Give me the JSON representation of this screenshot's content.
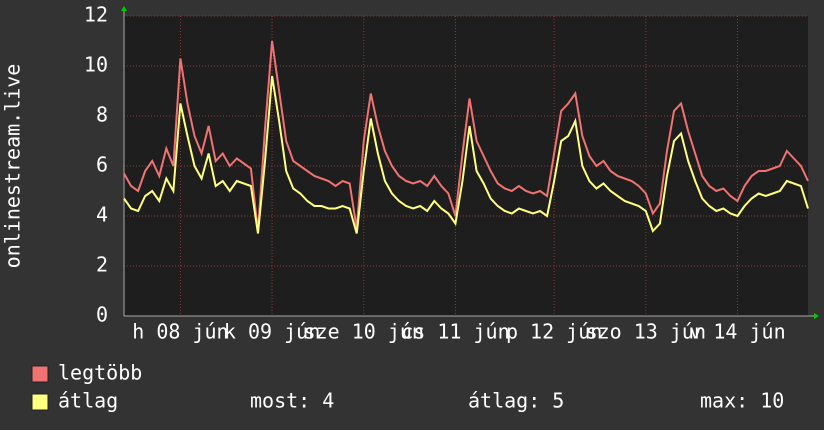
{
  "chart_data": {
    "type": "line",
    "y_label": "onlinestream.live",
    "xlim": [
      0,
      97
    ],
    "xticks": [
      {
        "value": 8,
        "label": "h 08 jún"
      },
      {
        "value": 21,
        "label": "k 09 jún"
      },
      {
        "value": 34,
        "label": "sze 10 jún"
      },
      {
        "value": 47,
        "label": "cs 11 jún"
      },
      {
        "value": 61,
        "label": "p 12 jún"
      },
      {
        "value": 74,
        "label": "szo 13 jún"
      },
      {
        "value": 87,
        "label": "v 14 jún"
      }
    ],
    "ylim": [
      0,
      12
    ],
    "yticks": [
      0,
      2,
      4,
      6,
      8,
      10,
      12
    ],
    "grid": true,
    "series": [
      {
        "name": "legtöbb",
        "color": "#f07272",
        "values": [
          5.7,
          5.2,
          5.0,
          5.8,
          6.2,
          5.6,
          6.7,
          6.0,
          10.3,
          8.5,
          7.2,
          6.5,
          7.6,
          6.2,
          6.5,
          6.0,
          6.3,
          6.1,
          5.9,
          3.4,
          7.5,
          11.0,
          9.0,
          7.0,
          6.2,
          6.0,
          5.8,
          5.6,
          5.5,
          5.4,
          5.2,
          5.4,
          5.3,
          3.5,
          7.0,
          8.9,
          7.6,
          6.6,
          6.0,
          5.6,
          5.4,
          5.3,
          5.4,
          5.2,
          5.6,
          5.2,
          4.9,
          4.0,
          6.5,
          8.7,
          7.0,
          6.4,
          5.8,
          5.3,
          5.1,
          5.0,
          5.2,
          5.0,
          4.9,
          5.0,
          4.8,
          6.5,
          8.2,
          8.5,
          8.9,
          7.2,
          6.4,
          6.0,
          6.2,
          5.8,
          5.6,
          5.5,
          5.4,
          5.2,
          4.9,
          4.1,
          4.5,
          6.6,
          8.2,
          8.5,
          7.4,
          6.5,
          5.6,
          5.2,
          5.0,
          5.1,
          4.8,
          4.6,
          5.2,
          5.6,
          5.8,
          5.8,
          5.9,
          6.0,
          6.6,
          6.3,
          6.0,
          5.4
        ]
      },
      {
        "name": "átlag",
        "color": "#ffff80",
        "values": [
          4.7,
          4.3,
          4.2,
          4.8,
          5.0,
          4.6,
          5.5,
          5.0,
          8.5,
          7.2,
          6.0,
          5.5,
          6.5,
          5.2,
          5.4,
          5.0,
          5.4,
          5.3,
          5.2,
          3.3,
          6.2,
          9.6,
          7.8,
          5.8,
          5.1,
          4.9,
          4.6,
          4.4,
          4.4,
          4.3,
          4.3,
          4.4,
          4.3,
          3.3,
          5.8,
          7.9,
          6.5,
          5.4,
          4.9,
          4.6,
          4.4,
          4.3,
          4.4,
          4.2,
          4.6,
          4.3,
          4.1,
          3.7,
          5.4,
          7.6,
          5.8,
          5.3,
          4.7,
          4.4,
          4.2,
          4.1,
          4.3,
          4.2,
          4.1,
          4.2,
          4.0,
          5.4,
          7.0,
          7.2,
          7.8,
          6.0,
          5.4,
          5.1,
          5.3,
          5.0,
          4.8,
          4.6,
          4.5,
          4.4,
          4.2,
          3.4,
          3.7,
          5.6,
          7.0,
          7.3,
          6.2,
          5.4,
          4.7,
          4.4,
          4.2,
          4.3,
          4.1,
          4.0,
          4.4,
          4.7,
          4.9,
          4.8,
          4.9,
          5.0,
          5.4,
          5.3,
          5.2,
          4.3
        ]
      }
    ],
    "stats": [
      "most: 4",
      "átlag: 5",
      "max: 10"
    ]
  }
}
